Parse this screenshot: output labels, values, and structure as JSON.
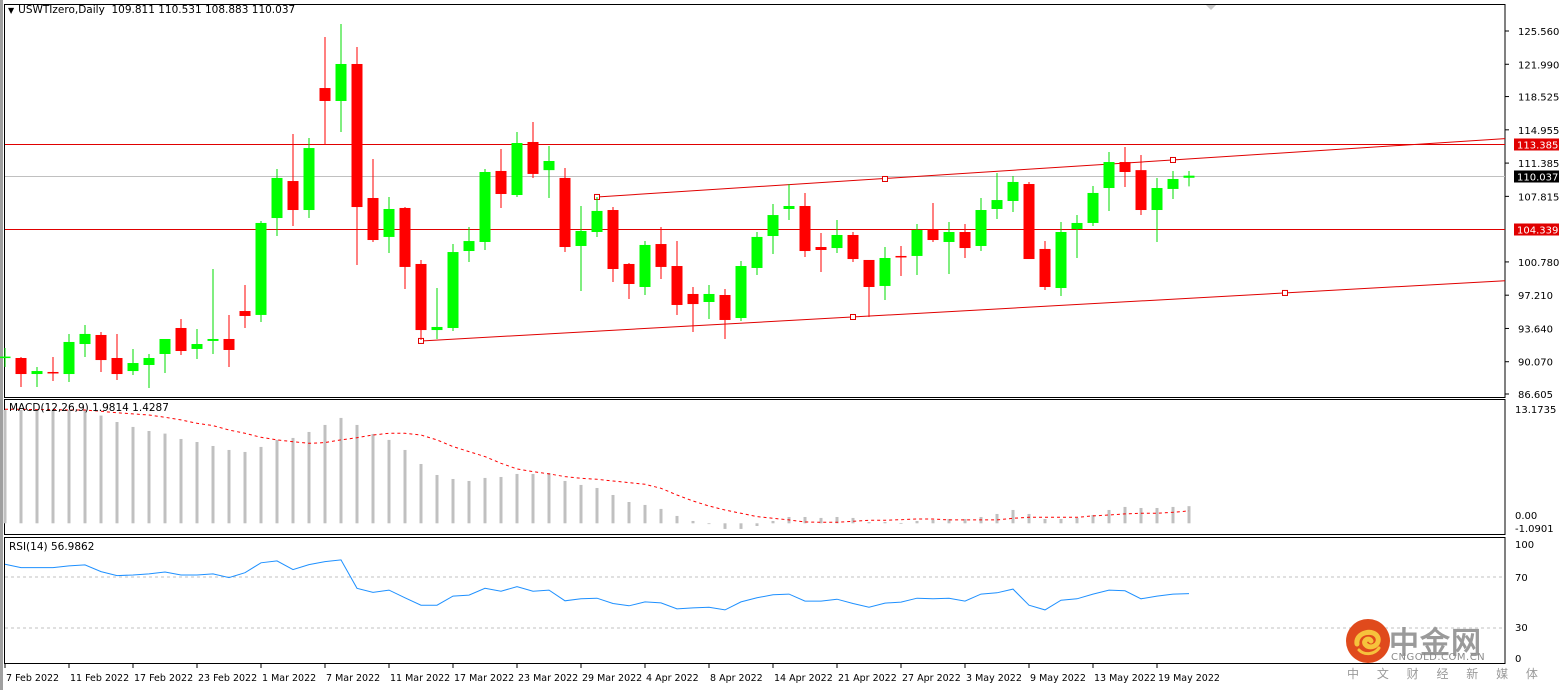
{
  "header": {
    "collapse_icon": "triangle-down-icon",
    "symbol_timeframe": "USWTIzero,Daily",
    "ohlc": "109.811 110.531 108.883 110.037"
  },
  "colors": {
    "bull": "#00ff00",
    "bear": "#ff0000",
    "level_line": "#e00000",
    "trendline": "#e00000",
    "current_price_line": "#c0c0c0",
    "macd_histogram": "#c0c0c0",
    "macd_signal": "#ff0000",
    "rsi_line": "#1e90ff",
    "rsi_levels": "#c0c0c0"
  },
  "chart_data": [
    {
      "type": "candlestick",
      "title": "USWTIzero,Daily",
      "ylim": [
        86.605,
        127.0
      ],
      "y_ticks": [
        "125.560",
        "121.990",
        "118.525",
        "114.955",
        "111.385",
        "107.815",
        "100.780",
        "97.210",
        "93.640",
        "90.070",
        "86.605"
      ],
      "x_tick_labels": [
        "7 Feb 2022",
        "11 Feb 2022",
        "17 Feb 2022",
        "23 Feb 2022",
        "1 Mar 2022",
        "7 Mar 2022",
        "11 Mar 2022",
        "17 Mar 2022",
        "23 Mar 2022",
        "29 Mar 2022",
        "4 Apr 2022",
        "8 Apr 2022",
        "14 Apr 2022",
        "21 Apr 2022",
        "27 Apr 2022",
        "3 May 2022",
        "9 May 2022",
        "13 May 2022",
        "19 May 2022"
      ],
      "x_tick_every": 4,
      "ohlc_columns": [
        "open",
        "high",
        "low",
        "close"
      ],
      "ohlc": [
        [
          90.58,
          91.54,
          89.5,
          90.62
        ],
        [
          90.47,
          90.58,
          87.36,
          88.75
        ],
        [
          88.75,
          89.5,
          87.36,
          89.07
        ],
        [
          88.97,
          90.58,
          88.0,
          88.86
        ],
        [
          88.75,
          93.05,
          87.89,
          92.19
        ],
        [
          91.97,
          94.01,
          90.58,
          93.05
        ],
        [
          92.94,
          93.26,
          88.97,
          90.25
        ],
        [
          90.47,
          93.05,
          88.11,
          88.75
        ],
        [
          89.07,
          91.44,
          88.64,
          89.93
        ],
        [
          89.72,
          90.9,
          87.25,
          90.47
        ],
        [
          90.9,
          92.51,
          88.86,
          92.51
        ],
        [
          93.69,
          94.66,
          90.79,
          91.22
        ],
        [
          91.44,
          93.58,
          90.36,
          91.97
        ],
        [
          92.3,
          100.02,
          90.9,
          92.51
        ],
        [
          92.51,
          95.09,
          89.5,
          91.33
        ],
        [
          95.51,
          98.3,
          93.69,
          94.98
        ],
        [
          95.09,
          105.17,
          94.33,
          104.96
        ],
        [
          105.49,
          110.75,
          103.56,
          109.79
        ],
        [
          109.46,
          114.51,
          104.63,
          106.35
        ],
        [
          106.35,
          114.08,
          105.49,
          113.0
        ],
        [
          119.44,
          124.92,
          113.33,
          118.05
        ],
        [
          118.05,
          126.31,
          114.72,
          122.02
        ],
        [
          122.02,
          123.84,
          100.45,
          106.67
        ],
        [
          107.64,
          111.82,
          102.92,
          103.13
        ],
        [
          103.46,
          107.75,
          101.74,
          106.46
        ],
        [
          106.57,
          106.67,
          97.87,
          100.24
        ],
        [
          100.56,
          100.99,
          92.4,
          93.47
        ],
        [
          93.47,
          97.98,
          92.51,
          93.8
        ],
        [
          93.69,
          102.7,
          93.37,
          101.84
        ],
        [
          101.95,
          104.53,
          100.77,
          103.02
        ],
        [
          102.92,
          110.75,
          102.06,
          110.43
        ],
        [
          110.54,
          112.9,
          106.57,
          108.07
        ],
        [
          107.96,
          114.72,
          107.75,
          113.54
        ],
        [
          113.65,
          115.8,
          109.79,
          110.22
        ],
        [
          110.63,
          113.22,
          107.64,
          111.61
        ],
        [
          109.79,
          110.86,
          101.84,
          102.38
        ],
        [
          102.49,
          106.78,
          97.66,
          104.1
        ],
        [
          103.99,
          107.75,
          103.46,
          106.25
        ],
        [
          106.35,
          106.67,
          98.63,
          100.02
        ],
        [
          100.56,
          100.66,
          96.8,
          98.41
        ],
        [
          98.09,
          103.02,
          97.23,
          102.6
        ],
        [
          102.7,
          104.53,
          98.95,
          100.24
        ],
        [
          100.34,
          103.02,
          95.09,
          96.16
        ],
        [
          97.34,
          98.09,
          93.26,
          96.26
        ],
        [
          96.48,
          98.3,
          94.66,
          97.34
        ],
        [
          97.23,
          97.87,
          92.51,
          94.55
        ],
        [
          94.76,
          100.88,
          94.44,
          100.34
        ],
        [
          100.13,
          103.99,
          99.38,
          103.46
        ],
        [
          103.56,
          106.99,
          101.63,
          105.81
        ],
        [
          106.46,
          109.14,
          105.28,
          106.78
        ],
        [
          106.78,
          108.18,
          101.31,
          101.95
        ],
        [
          102.38,
          103.88,
          99.7,
          102.06
        ],
        [
          102.27,
          105.28,
          101.74,
          103.67
        ],
        [
          103.67,
          103.99,
          100.77,
          101.09
        ],
        [
          100.99,
          100.99,
          94.87,
          98.09
        ],
        [
          98.2,
          102.38,
          96.69,
          101.2
        ],
        [
          101.42,
          102.49,
          99.27,
          101.31
        ],
        [
          101.42,
          104.85,
          99.38,
          104.21
        ],
        [
          104.31,
          107.1,
          102.92,
          103.13
        ],
        [
          102.92,
          105.06,
          99.48,
          103.99
        ],
        [
          103.99,
          104.85,
          101.2,
          102.27
        ],
        [
          102.49,
          107.64,
          101.95,
          106.35
        ],
        [
          106.46,
          110.32,
          105.39,
          107.42
        ],
        [
          107.32,
          110.0,
          106.14,
          109.36
        ],
        [
          109.14,
          109.36,
          101.09,
          101.09
        ],
        [
          102.17,
          103.02,
          97.77,
          98.09
        ],
        [
          97.98,
          105.06,
          97.12,
          103.99
        ],
        [
          104.31,
          105.81,
          101.2,
          104.96
        ],
        [
          104.96,
          108.93,
          104.63,
          108.18
        ],
        [
          108.71,
          112.58,
          106.25,
          111.5
        ],
        [
          111.5,
          113.11,
          108.82,
          110.43
        ],
        [
          110.63,
          112.25,
          105.81,
          106.35
        ],
        [
          106.35,
          109.79,
          102.92,
          108.71
        ],
        [
          108.61,
          110.54,
          107.53,
          109.68
        ],
        [
          109.811,
          110.531,
          108.883,
          110.037
        ]
      ],
      "horizontal_levels": [
        {
          "price": 113.385,
          "label": "113.385",
          "style": "level"
        },
        {
          "price": 104.339,
          "label": "104.339",
          "style": "level"
        },
        {
          "price": 110.037,
          "label": "110.037",
          "style": "current"
        }
      ],
      "trendlines": [
        {
          "name": "channel-upper",
          "points": [
            [
              37,
              107.75
            ],
            [
              55,
              109.68
            ],
            [
              73,
              111.72
            ]
          ]
        },
        {
          "name": "channel-lower",
          "points": [
            [
              26,
              92.3
            ],
            [
              53,
              94.87
            ],
            [
              80,
              97.45
            ]
          ]
        }
      ]
    },
    {
      "type": "bar+line",
      "title": "MACD(12,26,9)",
      "values_label": "1.9814 1.4287",
      "ylim": [
        -1.0901,
        13.1735
      ],
      "y_ticks": [
        "13.1735",
        "0.00",
        "-1.0901"
      ],
      "macd": [
        13.09,
        13.09,
        13.09,
        13.09,
        13.09,
        13.09,
        12.44,
        11.7,
        11.13,
        10.66,
        10.36,
        9.74,
        9.39,
        8.93,
        8.47,
        8.24,
        8.82,
        9.63,
        9.86,
        10.55,
        11.36,
        12.17,
        11.36,
        10.32,
        9.63,
        8.47,
        6.85,
        5.58,
        5.12,
        4.89,
        5.24,
        5.35,
        5.7,
        5.7,
        5.81,
        4.89,
        4.43,
        4.08,
        3.27,
        2.46,
        2.12,
        1.66,
        0.85,
        0.27,
        -0.08,
        -0.65,
        -0.65,
        -0.31,
        0.27,
        0.73,
        0.73,
        0.62,
        0.73,
        0.62,
        0.15,
        0.15,
        0.04,
        0.27,
        0.39,
        0.5,
        0.5,
        0.73,
        1.08,
        1.54,
        1.08,
        0.5,
        0.5,
        0.62,
        0.96,
        1.54,
        1.89,
        1.77,
        1.77,
        1.89,
        1.98
      ],
      "signal": [
        13.17,
        13.17,
        13.13,
        13.13,
        13.09,
        13.09,
        12.94,
        12.78,
        12.63,
        12.51,
        12.24,
        11.94,
        11.55,
        11.28,
        10.78,
        10.4,
        9.93,
        9.63,
        9.43,
        9.24,
        9.32,
        9.63,
        9.89,
        10.2,
        10.4,
        10.4,
        10.2,
        9.63,
        8.86,
        8.28,
        7.7,
        6.93,
        6.28,
        5.97,
        5.7,
        5.39,
        5.2,
        5.08,
        4.89,
        4.7,
        4.5,
        4.04,
        3.27,
        2.58,
        2.0,
        1.54,
        1.16,
        0.77,
        0.58,
        0.39,
        0.15,
        0.12,
        0.12,
        0.23,
        0.35,
        0.35,
        0.42,
        0.5,
        0.5,
        0.39,
        0.39,
        0.39,
        0.39,
        0.58,
        0.69,
        0.69,
        0.69,
        0.69,
        0.85,
        0.96,
        1.08,
        1.16,
        1.16,
        1.27,
        1.43
      ]
    },
    {
      "type": "line",
      "title": "RSI(14)",
      "values_label": "56.9862",
      "ylim": [
        0,
        100
      ],
      "y_ticks": [
        "100",
        "70",
        "30",
        "0"
      ],
      "levels": [
        70,
        30
      ],
      "values": [
        80.0,
        77.4,
        77.4,
        77.4,
        78.7,
        79.5,
        74.2,
        71.1,
        71.6,
        72.4,
        73.9,
        71.6,
        71.6,
        72.4,
        69.5,
        73.4,
        81.1,
        82.6,
        75.8,
        79.7,
        82.1,
        83.4,
        61.1,
        57.9,
        59.7,
        53.7,
        47.9,
        47.9,
        55.0,
        55.8,
        61.1,
        58.9,
        62.4,
        58.9,
        59.7,
        51.3,
        52.9,
        53.4,
        49.2,
        47.4,
        50.5,
        49.7,
        45.0,
        45.8,
        46.3,
        44.2,
        50.5,
        53.7,
        56.1,
        56.6,
        51.1,
        51.1,
        52.6,
        49.2,
        46.3,
        49.5,
        50.3,
        53.4,
        52.9,
        53.4,
        51.1,
        56.6,
        57.6,
        60.5,
        47.9,
        44.2,
        51.8,
        52.9,
        56.6,
        59.7,
        59.2,
        52.9,
        55.0,
        56.6,
        56.99
      ]
    }
  ],
  "watermark": {
    "logo_cn": "中金网",
    "domain": "CNGOLD.COM.CN",
    "tagline": "中 文 财 经 新 媒 体"
  }
}
